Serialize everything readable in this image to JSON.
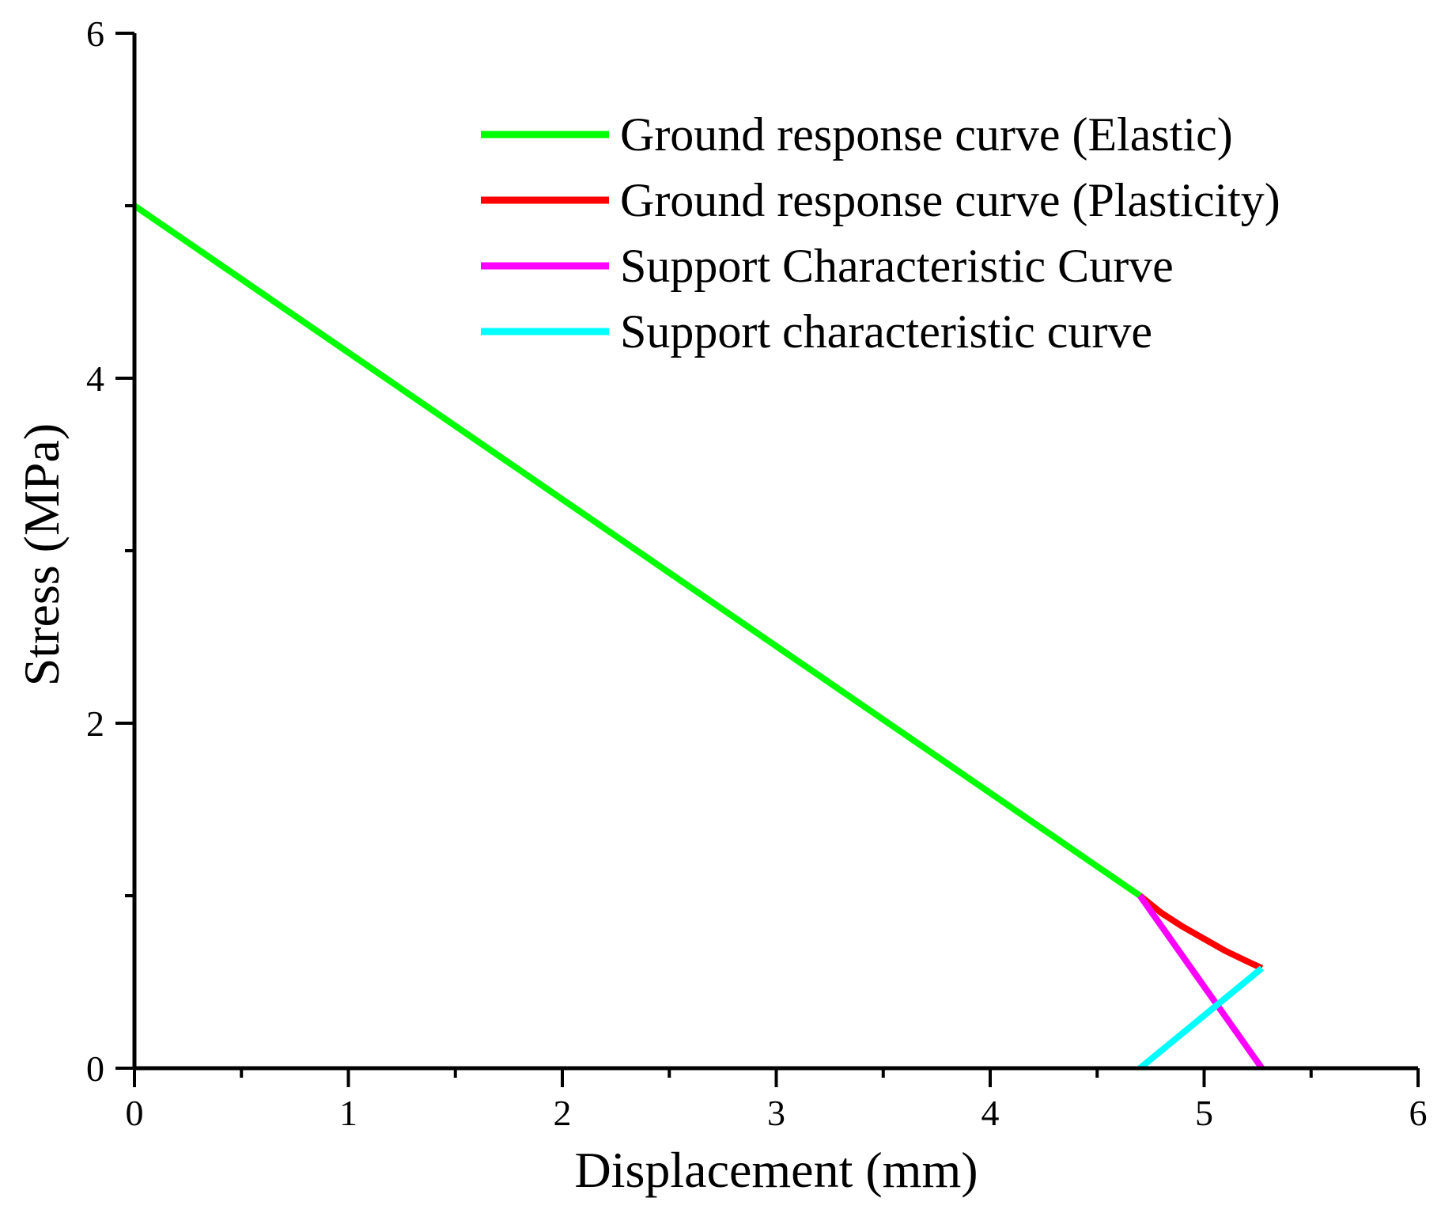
{
  "chart_data": {
    "type": "line",
    "xlabel": "Displacement (mm)",
    "ylabel": "Stress (MPa)",
    "xlim": [
      0,
      6
    ],
    "ylim": [
      0,
      6
    ],
    "xticks": [
      "0",
      "1",
      "2",
      "3",
      "4",
      "5",
      "6"
    ],
    "yticks": [
      "0",
      "2",
      "4",
      "6"
    ],
    "grid": false,
    "legend_position": "top-right",
    "series": [
      {
        "name": "Ground response curve (Elastic)",
        "color": "#00ff00",
        "x": [
          0,
          4.7
        ],
        "y": [
          5.0,
          1.0
        ]
      },
      {
        "name": "Ground response curve (Plasticity)",
        "color": "#ff0000",
        "x": [
          4.7,
          4.8,
          4.9,
          5.0,
          5.1,
          5.2,
          5.27
        ],
        "y": [
          1.0,
          0.9,
          0.82,
          0.75,
          0.68,
          0.62,
          0.58
        ]
      },
      {
        "name": "Support Characteristic Curve",
        "color": "#ff00ff",
        "x": [
          4.7,
          5.27
        ],
        "y": [
          1.0,
          0.0
        ]
      },
      {
        "name": "Support characteristic curve",
        "color": "#00ffff",
        "x": [
          4.7,
          5.27
        ],
        "y": [
          0.0,
          0.58
        ]
      }
    ]
  }
}
